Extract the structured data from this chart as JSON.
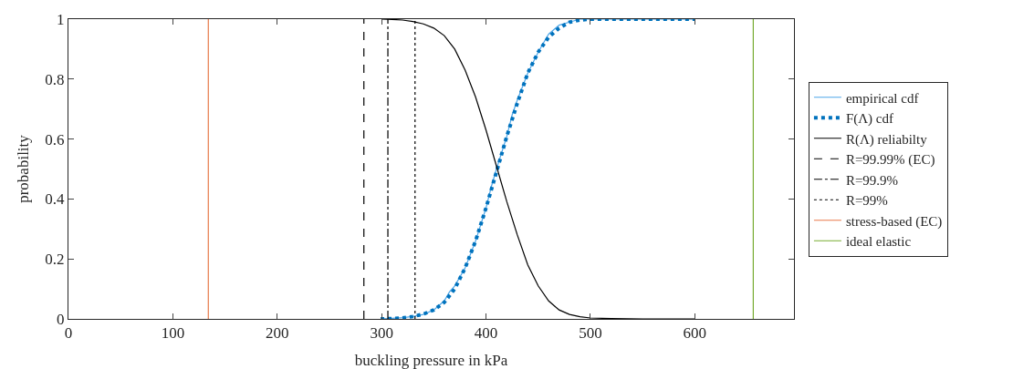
{
  "chart_data": {
    "type": "line",
    "xlabel": "buckling pressure in kPa",
    "ylabel": "probability",
    "xlim": [
      0,
      695
    ],
    "xticks": [
      0,
      100,
      200,
      300,
      400,
      500,
      600
    ],
    "ylim": [
      0,
      1
    ],
    "yticks": [
      0,
      0.2,
      0.4,
      0.6,
      0.8,
      1
    ],
    "grid": false,
    "legend": "right",
    "marker": "none",
    "series": [
      {
        "name": "empirical cdf",
        "color": "#4da6e8",
        "line_style": "solid",
        "x": [
          299,
          310,
          320,
          330,
          340,
          350,
          360,
          365,
          370,
          380,
          390,
          400,
          405,
          410,
          420,
          425,
          430,
          440,
          450,
          455,
          460,
          470,
          480,
          490,
          500,
          600
        ],
        "values": [
          0,
          0.002,
          0.004,
          0.008,
          0.015,
          0.03,
          0.06,
          0.09,
          0.11,
          0.17,
          0.26,
          0.37,
          0.44,
          0.5,
          0.61,
          0.68,
          0.73,
          0.82,
          0.89,
          0.92,
          0.95,
          0.98,
          0.99,
          1,
          1,
          1
        ]
      },
      {
        "name": "F(Λ) cdf",
        "color": "#0072bd",
        "line_style": "dotted",
        "x": [
          299,
          310,
          320,
          330,
          340,
          350,
          360,
          370,
          380,
          390,
          400,
          410,
          420,
          430,
          440,
          450,
          460,
          470,
          480,
          490,
          500,
          600
        ],
        "values": [
          0,
          0.001,
          0.003,
          0.008,
          0.016,
          0.03,
          0.055,
          0.1,
          0.17,
          0.26,
          0.37,
          0.49,
          0.61,
          0.72,
          0.82,
          0.89,
          0.94,
          0.97,
          0.99,
          0.997,
          1,
          1
        ]
      },
      {
        "name": "R(Λ) reliabilty",
        "color": "#000000",
        "line_style": "solid",
        "x": [
          300,
          310,
          320,
          330,
          340,
          350,
          360,
          370,
          380,
          390,
          400,
          410,
          420,
          430,
          440,
          450,
          460,
          470,
          480,
          490,
          500,
          520,
          550,
          600
        ],
        "values": [
          1,
          0.999,
          0.997,
          0.992,
          0.984,
          0.97,
          0.945,
          0.9,
          0.83,
          0.74,
          0.63,
          0.51,
          0.39,
          0.28,
          0.18,
          0.11,
          0.06,
          0.03,
          0.015,
          0.007,
          0.003,
          0.001,
          0,
          0
        ]
      },
      {
        "name": "R=99.99% (EC)",
        "color": "#000000",
        "line_style": "dashed",
        "x": [
          283,
          283
        ],
        "values": [
          0,
          1
        ]
      },
      {
        "name": "R=99.9%",
        "color": "#000000",
        "line_style": "dashdot",
        "x": [
          306,
          306
        ],
        "values": [
          0,
          1
        ]
      },
      {
        "name": "R=99%",
        "color": "#000000",
        "line_style": "dotted",
        "x": [
          332,
          332
        ],
        "values": [
          0,
          1
        ]
      },
      {
        "name": "stress-based (EC)",
        "color": "#e8794a",
        "line_style": "solid",
        "x": [
          134,
          134
        ],
        "values": [
          0,
          1
        ]
      },
      {
        "name": "ideal elastic",
        "color": "#77ac30",
        "line_style": "solid",
        "x": [
          656,
          656
        ],
        "values": [
          0,
          1
        ]
      }
    ]
  }
}
